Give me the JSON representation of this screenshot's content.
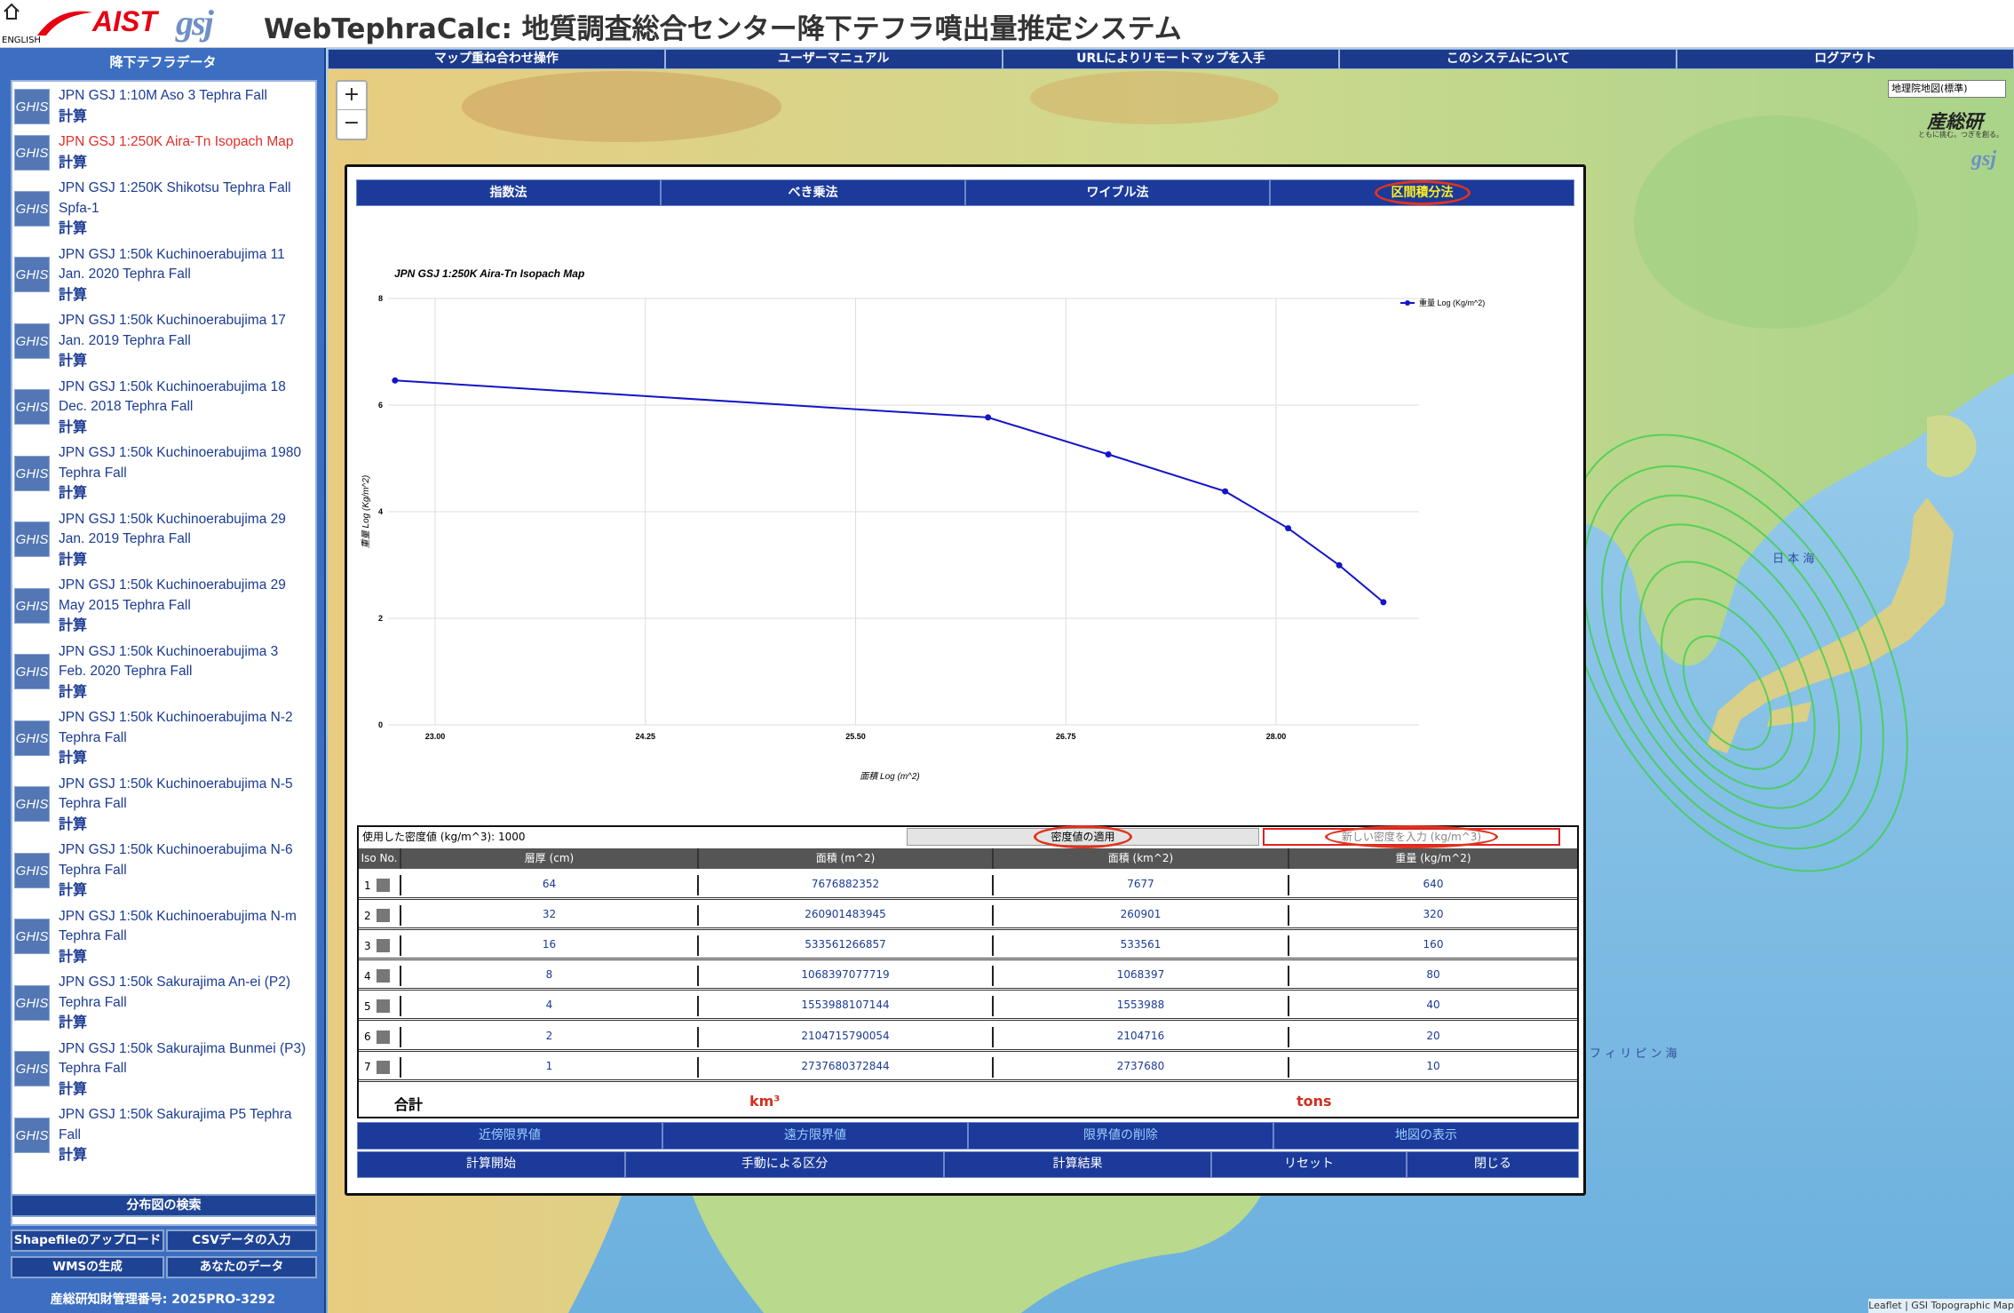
{
  "header": {
    "english": "ENGLISH",
    "logo_aist": "AIST",
    "logo_gsj": "gsj",
    "title": "WebTephraCalc: 地質調査総合センター降下テフラ噴出量推定システム"
  },
  "nav": [
    "マップ重ね合わせ操作",
    "ユーザーマニュアル",
    "URLによりリモートマップを入手",
    "このシステムについて",
    "ログアウト"
  ],
  "sidebar": {
    "heading": "降下テフラデータ",
    "badge": "GHIS",
    "action": "計算",
    "selected": 1,
    "items": [
      "JPN GSJ 1:10M Aso 3 Tephra Fall",
      "JPN GSJ 1:250K Aira-Tn Isopach Map",
      "JPN GSJ 1:250K Shikotsu Tephra Fall Spfa-1",
      "JPN GSJ 1:50k Kuchinoerabujima 11 Jan. 2020 Tephra Fall",
      "JPN GSJ 1:50k Kuchinoerabujima 17 Jan. 2019 Tephra Fall",
      "JPN GSJ 1:50k Kuchinoerabujima 18 Dec. 2018 Tephra Fall",
      "JPN GSJ 1:50k Kuchinoerabujima 1980 Tephra Fall",
      "JPN GSJ 1:50k Kuchinoerabujima 29 Jan. 2019 Tephra Fall",
      "JPN GSJ 1:50k Kuchinoerabujima 29 May 2015 Tephra Fall",
      "JPN GSJ 1:50k Kuchinoerabujima 3 Feb. 2020 Tephra Fall",
      "JPN GSJ 1:50k Kuchinoerabujima N-2 Tephra Fall",
      "JPN GSJ 1:50k Kuchinoerabujima N-5 Tephra Fall",
      "JPN GSJ 1:50k Kuchinoerabujima N-6 Tephra Fall",
      "JPN GSJ 1:50k Kuchinoerabujima N-m Tephra Fall",
      "JPN GSJ 1:50k Sakurajima An-ei (P2) Tephra Fall",
      "JPN GSJ 1:50k Sakurajima Bunmei (P3) Tephra Fall",
      "JPN GSJ 1:50k Sakurajima P5 Tephra Fall"
    ],
    "search": "分布図の検索",
    "tools": [
      [
        "Shapefileのアップロード",
        "CSVデータの入力"
      ],
      [
        "WMSの生成",
        "あなたのデータ"
      ]
    ],
    "footer": "産総研知財管理番号: 2025PRO-3292"
  },
  "map": {
    "zoom_in": "+",
    "zoom_out": "−",
    "layer": "地理院地図(標準)",
    "brand": "産総研",
    "tagline": "ともに挑む。つぎを創る。",
    "attribution": "Leaflet | GSI Topographic Map",
    "labels": [
      "日 本 海",
      "フ ィ リ ピ ン 海"
    ]
  },
  "panel": {
    "tabs": [
      "指数法",
      "べき乗法",
      "ワイブル法",
      "区間積分法"
    ],
    "active_tab": 3,
    "buttons_row1": [
      "近傍限界値",
      "遠方限界値",
      "限界値の削除",
      "地図の表示"
    ],
    "buttons_row2": [
      "計算開始",
      "手動による区分",
      "計算結果",
      "リセット",
      "閉じる"
    ]
  },
  "chart_data": {
    "type": "line",
    "title": "JPN GSJ 1:250K Aira-Tn Isopach Map",
    "x_label": "面積 Log (m^2)",
    "y_label": "重量 Log (Kg/m^2)",
    "x": [
      22.7614,
      26.2874,
      27.0028,
      27.6972,
      28.0718,
      28.3752,
      28.6381
    ],
    "series": [
      {
        "name": "重量 Log (Kg/m^2)",
        "color": "#1414c8",
        "values": [
          6.4615,
          5.7683,
          5.0752,
          4.382,
          3.6889,
          2.9957,
          2.3026
        ]
      }
    ],
    "xlim": [
      22.72,
      28.85
    ],
    "xticks": [
      {
        "value": 23,
        "label": "23.00"
      },
      {
        "value": 24.25,
        "label": "24.25"
      },
      {
        "value": 25.5,
        "label": "25.50"
      },
      {
        "value": 26.75,
        "label": "26.75"
      },
      {
        "value": 28,
        "label": "28.00"
      }
    ],
    "ylim": [
      0,
      8
    ],
    "yticks": [
      0,
      2,
      4,
      6,
      8
    ],
    "grid": true,
    "legend": "top-right"
  },
  "table": {
    "density_label": "使用した密度値 (kg/m^3): 1000",
    "apply": "密度値の適用",
    "new_density": "新しい密度を入力 (kg/m^3)",
    "columns": [
      "Iso No.",
      "層厚 (cm)",
      "面積 (m^2)",
      "面積 (km^2)",
      "重量 (kg/m^2)"
    ],
    "rows": [
      [
        1,
        64,
        7676882352,
        7677,
        640
      ],
      [
        2,
        32,
        260901483945,
        260901,
        320
      ],
      [
        3,
        16,
        533561266857,
        533561,
        160
      ],
      [
        4,
        8,
        1068397077719,
        1068397,
        80
      ],
      [
        5,
        4,
        1553988107144,
        1553988,
        40
      ],
      [
        6,
        2,
        2104715790054,
        2104716,
        20
      ],
      [
        7,
        1,
        2737680372844,
        2737680,
        10
      ]
    ],
    "total_label": "合計",
    "volume_unit": "km³",
    "mass_unit": "tons"
  }
}
